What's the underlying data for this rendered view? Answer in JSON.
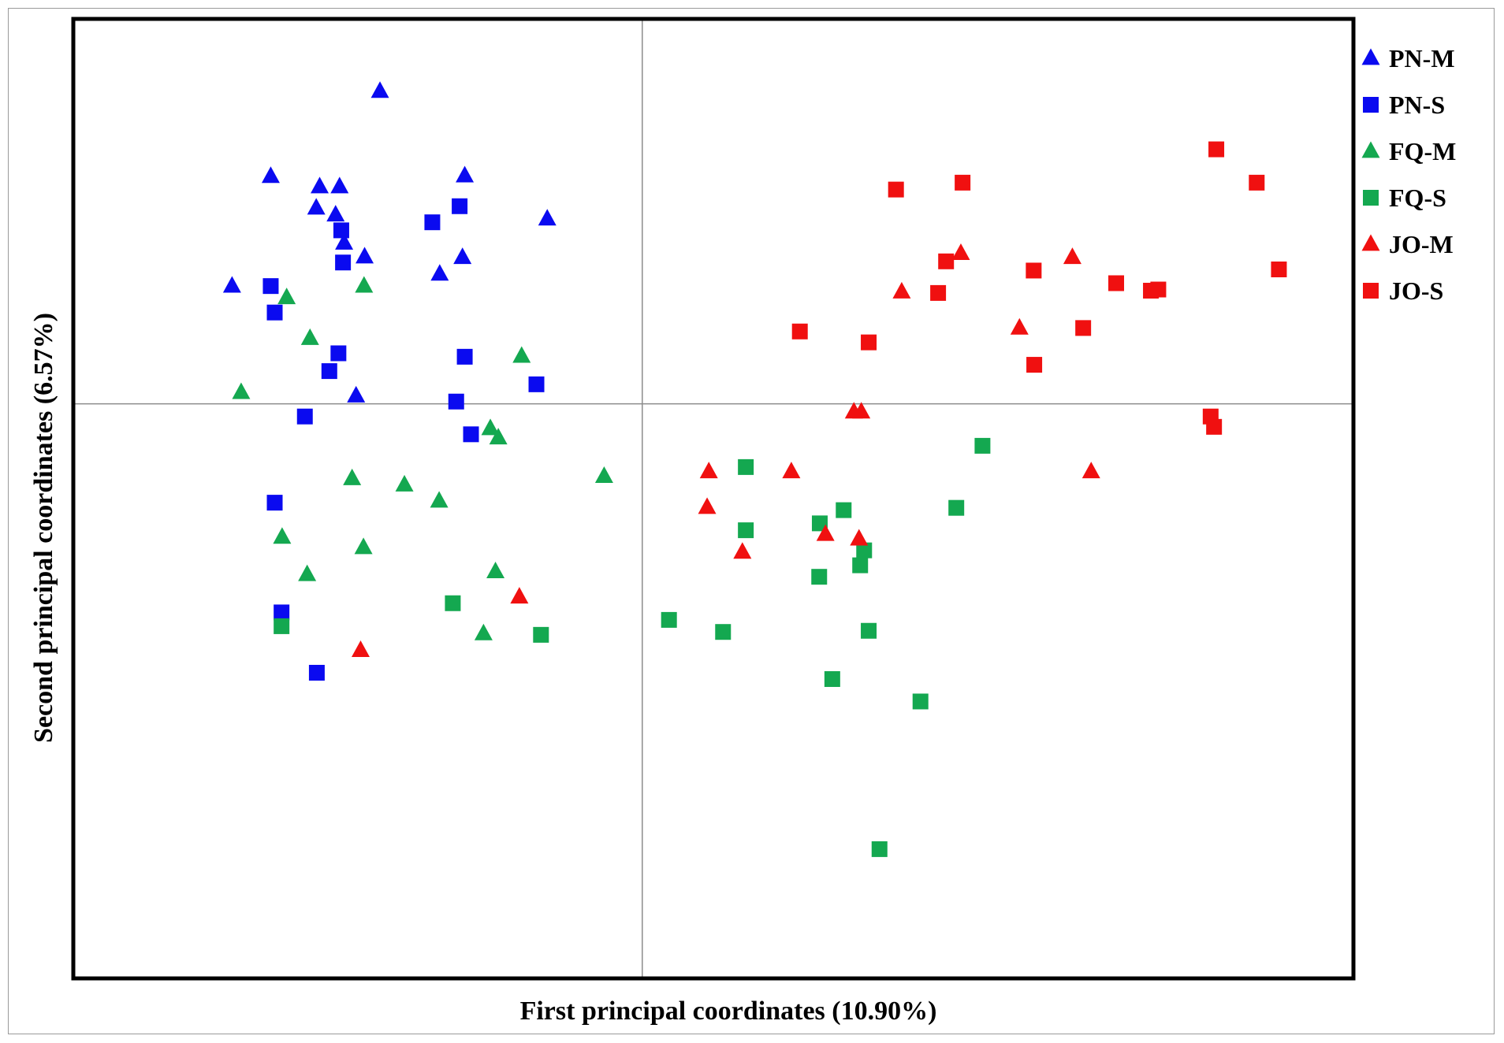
{
  "chart_data": {
    "type": "scatter",
    "title": "",
    "xlabel": "First principal coordinates (10.90%)",
    "ylabel": "Second principal coordinates (6.57%)",
    "xlim": [
      -1.0,
      1.25
    ],
    "ylim": [
      -1.0,
      0.67
    ],
    "grid": false,
    "zero_lines": true,
    "tick_labels": false,
    "legend_position": "right",
    "series": [
      {
        "name": "PN-M",
        "marker": "triangle",
        "color": "#0a0af0",
        "points": [
          [
            -0.461,
            0.544
          ],
          [
            -0.653,
            0.396
          ],
          [
            -0.567,
            0.378
          ],
          [
            -0.532,
            0.378
          ],
          [
            -0.573,
            0.341
          ],
          [
            -0.539,
            0.329
          ],
          [
            -0.524,
            0.28
          ],
          [
            -0.488,
            0.256
          ],
          [
            -0.312,
            0.397
          ],
          [
            -0.316,
            0.255
          ],
          [
            -0.356,
            0.226
          ],
          [
            -0.167,
            0.322
          ],
          [
            -0.721,
            0.205
          ],
          [
            -0.503,
            0.014
          ]
        ]
      },
      {
        "name": "PN-S",
        "marker": "square",
        "color": "#0a0af0",
        "points": [
          [
            -0.321,
            0.344
          ],
          [
            -0.369,
            0.316
          ],
          [
            -0.529,
            0.302
          ],
          [
            -0.526,
            0.246
          ],
          [
            -0.653,
            0.205
          ],
          [
            -0.646,
            0.159
          ],
          [
            -0.534,
            0.088
          ],
          [
            -0.55,
            0.057
          ],
          [
            -0.312,
            0.082
          ],
          [
            -0.186,
            0.034
          ],
          [
            -0.327,
            0.004
          ],
          [
            -0.593,
            -0.022
          ],
          [
            -0.301,
            -0.053
          ],
          [
            -0.646,
            -0.172
          ],
          [
            -0.634,
            -0.363
          ],
          [
            -0.572,
            -0.468
          ]
        ]
      },
      {
        "name": "FQ-M",
        "marker": "triangle",
        "color": "#14a850",
        "points": [
          [
            -0.625,
            0.185
          ],
          [
            -0.489,
            0.205
          ],
          [
            -0.584,
            0.114
          ],
          [
            -0.705,
            0.02
          ],
          [
            -0.212,
            0.083
          ],
          [
            -0.267,
            -0.043
          ],
          [
            -0.253,
            -0.059
          ],
          [
            -0.51,
            -0.13
          ],
          [
            -0.418,
            -0.141
          ],
          [
            -0.357,
            -0.169
          ],
          [
            -0.067,
            -0.126
          ],
          [
            -0.633,
            -0.232
          ],
          [
            -0.49,
            -0.25
          ],
          [
            -0.589,
            -0.297
          ],
          [
            -0.258,
            -0.292
          ],
          [
            -0.279,
            -0.4
          ]
        ]
      },
      {
        "name": "FQ-S",
        "marker": "square",
        "color": "#14a850",
        "points": [
          [
            -0.634,
            -0.387
          ],
          [
            -0.333,
            -0.347
          ],
          [
            -0.178,
            -0.402
          ],
          [
            0.047,
            -0.376
          ],
          [
            0.142,
            -0.397
          ],
          [
            0.182,
            -0.11
          ],
          [
            0.182,
            -0.22
          ],
          [
            0.312,
            -0.208
          ],
          [
            0.354,
            -0.185
          ],
          [
            0.311,
            -0.301
          ],
          [
            0.39,
            -0.255
          ],
          [
            0.383,
            -0.281
          ],
          [
            0.398,
            -0.395
          ],
          [
            0.334,
            -0.479
          ],
          [
            0.489,
            -0.518
          ],
          [
            0.598,
            -0.073
          ],
          [
            0.552,
            -0.181
          ],
          [
            0.417,
            -0.775
          ]
        ]
      },
      {
        "name": "JO-M",
        "marker": "triangle",
        "color": "#f01010",
        "points": [
          [
            0.56,
            0.262
          ],
          [
            0.456,
            0.195
          ],
          [
            0.756,
            0.255
          ],
          [
            0.663,
            0.132
          ],
          [
            0.372,
            -0.014
          ],
          [
            0.385,
            -0.014
          ],
          [
            0.117,
            -0.118
          ],
          [
            0.262,
            -0.118
          ],
          [
            0.114,
            -0.18
          ],
          [
            0.176,
            -0.258
          ],
          [
            0.322,
            -0.227
          ],
          [
            0.381,
            -0.235
          ],
          [
            0.789,
            -0.118
          ],
          [
            -0.216,
            -0.336
          ],
          [
            -0.495,
            -0.429
          ]
        ]
      },
      {
        "name": "JO-S",
        "marker": "square",
        "color": "#f01010",
        "points": [
          [
            1.009,
            0.443
          ],
          [
            1.08,
            0.385
          ],
          [
            0.563,
            0.385
          ],
          [
            0.446,
            0.373
          ],
          [
            0.534,
            0.248
          ],
          [
            0.52,
            0.193
          ],
          [
            0.688,
            0.232
          ],
          [
            0.833,
            0.21
          ],
          [
            0.894,
            0.197
          ],
          [
            0.907,
            0.199
          ],
          [
            1.119,
            0.234
          ],
          [
            0.277,
            0.126
          ],
          [
            0.398,
            0.107
          ],
          [
            0.775,
            0.132
          ],
          [
            0.689,
            0.068
          ],
          [
            0.999,
            -0.022
          ],
          [
            1.005,
            -0.04
          ]
        ]
      }
    ]
  }
}
